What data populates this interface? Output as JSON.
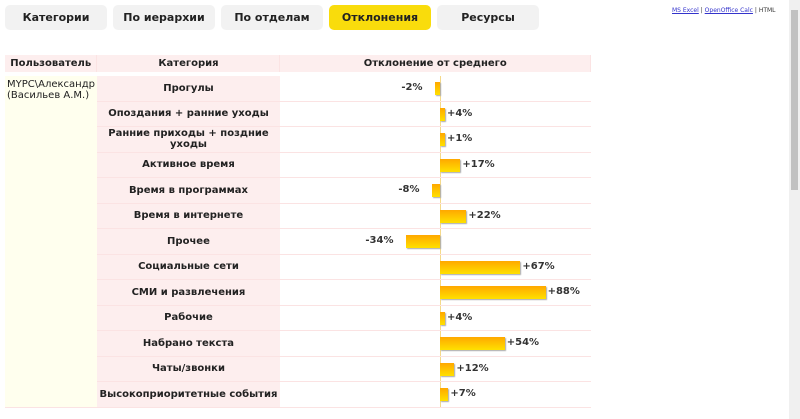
{
  "tabs": [
    "Категории",
    "По иерархии",
    "По отделам",
    "Отклонения",
    "Ресурсы"
  ],
  "active_tab": 3,
  "exports": {
    "excel": "MS Excel",
    "calc": "OpenOffice Calc",
    "html": "HTML",
    "sep": "|"
  },
  "table": {
    "headers": [
      "Пользователь",
      "Категория",
      "Отклонение от среднего"
    ],
    "user": "MYPC\\Александр (Васильев А.М.)",
    "rows": [
      {
        "category": "Прогулы",
        "value": -2,
        "label": "-2%"
      },
      {
        "category": "Опоздания + ранние уходы",
        "value": 4,
        "label": "+4%"
      },
      {
        "category": "Ранние приходы + поздние уходы",
        "value": 1,
        "label": "+1%"
      },
      {
        "category": "Активное время",
        "value": 17,
        "label": "+17%"
      },
      {
        "category": "Время в программах",
        "value": -8,
        "label": "-8%"
      },
      {
        "category": "Время в интернете",
        "value": 22,
        "label": "+22%"
      },
      {
        "category": "Прочее",
        "value": -34,
        "label": "-34%"
      },
      {
        "category": "Социальные сети",
        "value": 67,
        "label": "+67%"
      },
      {
        "category": "СМИ и развлечения",
        "value": 88,
        "label": "+88%"
      },
      {
        "category": "Рабочие",
        "value": 4,
        "label": "+4%"
      },
      {
        "category": "Набрано текста",
        "value": 54,
        "label": "+54%"
      },
      {
        "category": "Чаты/звонки",
        "value": 12,
        "label": "+12%"
      },
      {
        "category": "Высокоприоритетные события",
        "value": 7,
        "label": "+7%"
      }
    ]
  }
}
